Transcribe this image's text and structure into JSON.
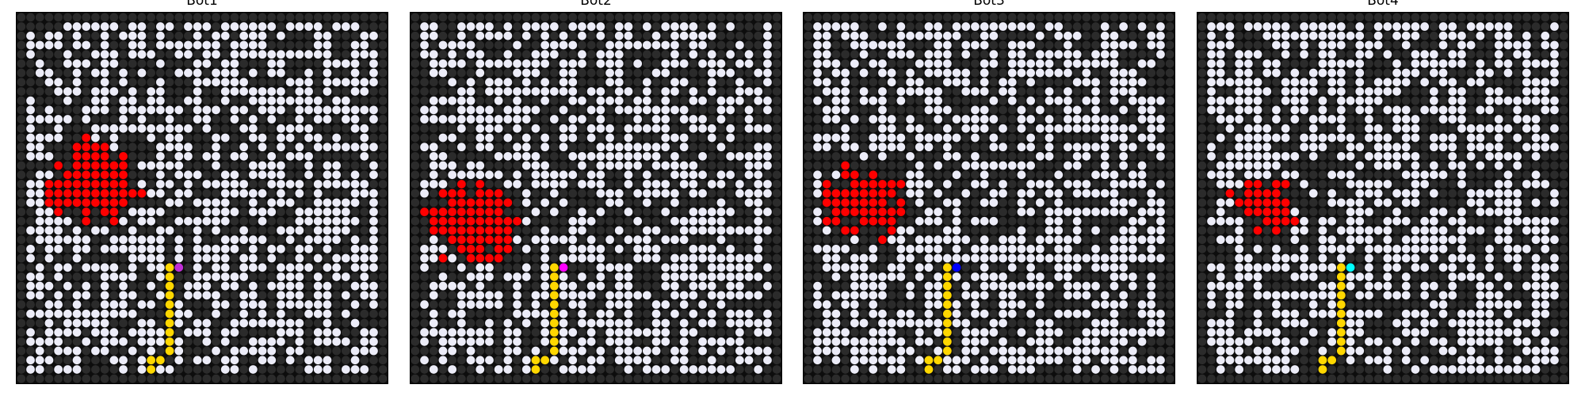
{
  "grid_size": 40,
  "colors": {
    "background": "#0d0d0d",
    "wall": "#2b2b2b",
    "open": "#ececf8",
    "fire": "#ff0000",
    "path": "#ffd700"
  },
  "panels": [
    {
      "title": "Bot1",
      "bot_color": "#c02fd6",
      "seed": 11,
      "fire_center": [
        18,
        8
      ],
      "fire_radius": 5.2,
      "path_start": [
        35,
        15
      ],
      "path_end": [
        33,
        17
      ]
    },
    {
      "title": "Bot2",
      "bot_color": "#ff00ff",
      "seed": 23,
      "fire_center": [
        22,
        6
      ],
      "fire_radius": 5.0,
      "path_start": [
        35,
        14
      ],
      "path_end": [
        33,
        16
      ]
    },
    {
      "title": "Bot3",
      "bot_color": "#0000ff",
      "seed": 37,
      "fire_center": [
        20,
        6
      ],
      "fire_radius": 4.8,
      "path_start": [
        35,
        14
      ],
      "path_end": [
        33,
        16
      ]
    },
    {
      "title": "Bot4",
      "bot_color": "#00ffff",
      "seed": 51,
      "fire_center": [
        20,
        7
      ],
      "fire_radius": 3.6,
      "path_start": [
        35,
        14
      ],
      "path_end": [
        33,
        16
      ]
    }
  ]
}
